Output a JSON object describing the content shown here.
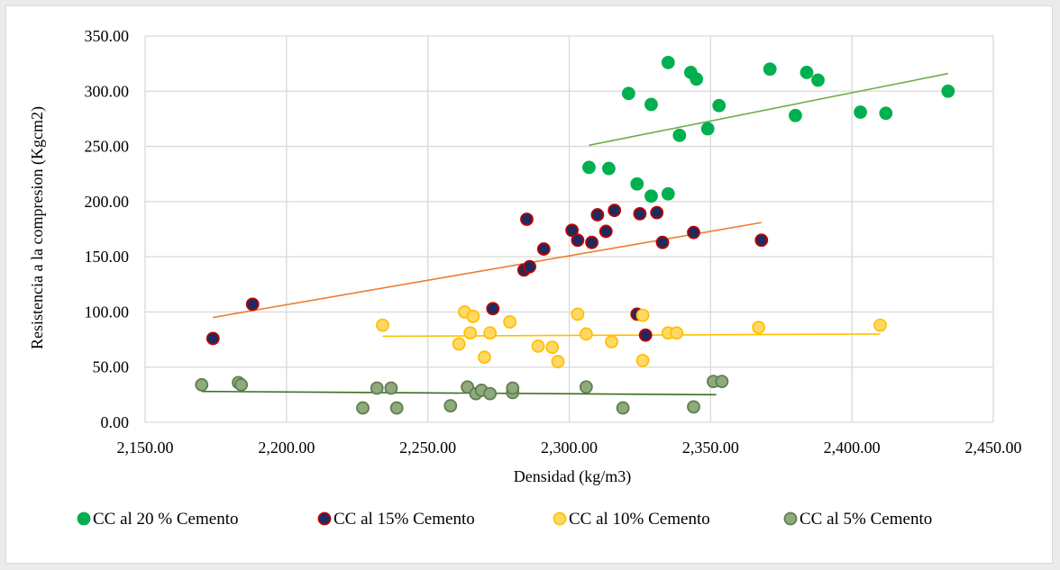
{
  "chart_data": {
    "type": "scatter",
    "title": "",
    "xlabel": "Densidad (kg/m3)",
    "ylabel": "Resistencia a la compresion (Kgcm2)",
    "xlim": [
      2150,
      2450
    ],
    "ylim": [
      0,
      350
    ],
    "xticks": [
      2150,
      2200,
      2250,
      2300,
      2350,
      2400,
      2450
    ],
    "xtick_labels": [
      "2,150.00",
      "2,200.00",
      "2,250.00",
      "2,300.00",
      "2,350.00",
      "2,400.00",
      "2,450.00"
    ],
    "yticks": [
      0,
      50,
      100,
      150,
      200,
      250,
      300,
      350
    ],
    "ytick_labels": [
      "0.00",
      "50.00",
      "100.00",
      "150.00",
      "200.00",
      "250.00",
      "300.00",
      "350.00"
    ],
    "grid": "both",
    "legend_position": "bottom",
    "series": [
      {
        "name": "CC  al 20 % Cemento",
        "marker_fill": "#00b050",
        "marker_stroke": "#00b050",
        "trend_color": "#70ad47",
        "trendline": {
          "x": [
            2307,
            2434
          ],
          "y": [
            251,
            316
          ]
        },
        "points": [
          [
            2335,
            326
          ],
          [
            2343,
            317
          ],
          [
            2345,
            311
          ],
          [
            2371,
            320
          ],
          [
            2384,
            317
          ],
          [
            2388,
            310
          ],
          [
            2321,
            298
          ],
          [
            2329,
            288
          ],
          [
            2353,
            287
          ],
          [
            2339,
            260
          ],
          [
            2349,
            266
          ],
          [
            2380,
            278
          ],
          [
            2403,
            281
          ],
          [
            2412,
            280
          ],
          [
            2434,
            300
          ],
          [
            2307,
            231
          ],
          [
            2314,
            230
          ],
          [
            2324,
            216
          ],
          [
            2329,
            205
          ],
          [
            2335,
            207
          ]
        ]
      },
      {
        "name": "CC  al 15% Cemento",
        "marker_fill": "#1f2a5e",
        "marker_stroke": "#c00000",
        "trend_color": "#ed7d31",
        "trendline": {
          "x": [
            2174,
            2368
          ],
          "y": [
            95,
            181
          ]
        },
        "points": [
          [
            2174,
            76
          ],
          [
            2188,
            107
          ],
          [
            2273,
            103
          ],
          [
            2285,
            184
          ],
          [
            2291,
            157
          ],
          [
            2284,
            138
          ],
          [
            2286,
            141
          ],
          [
            2301,
            174
          ],
          [
            2303,
            165
          ],
          [
            2308,
            163
          ],
          [
            2310,
            188
          ],
          [
            2313,
            173
          ],
          [
            2316,
            192
          ],
          [
            2325,
            189
          ],
          [
            2331,
            190
          ],
          [
            2333,
            163
          ],
          [
            2344,
            172
          ],
          [
            2368,
            165
          ],
          [
            2324,
            98
          ],
          [
            2327,
            79
          ]
        ]
      },
      {
        "name": "CC  al 10% Cemento",
        "marker_fill": "#ffd966",
        "marker_stroke": "#ffc000",
        "trend_color": "#ffc000",
        "trendline": {
          "x": [
            2234,
            2410
          ],
          "y": [
            78,
            80
          ]
        },
        "points": [
          [
            2234,
            88
          ],
          [
            2263,
            100
          ],
          [
            2266,
            96
          ],
          [
            2279,
            91
          ],
          [
            2261,
            71
          ],
          [
            2265,
            81
          ],
          [
            2270,
            59
          ],
          [
            2272,
            81
          ],
          [
            2289,
            69
          ],
          [
            2294,
            68
          ],
          [
            2296,
            55
          ],
          [
            2303,
            98
          ],
          [
            2306,
            80
          ],
          [
            2315,
            73
          ],
          [
            2326,
            97
          ],
          [
            2326,
            56
          ],
          [
            2335,
            81
          ],
          [
            2338,
            81
          ],
          [
            2367,
            86
          ],
          [
            2410,
            88
          ]
        ]
      },
      {
        "name": "CC  al 5% Cemento",
        "marker_fill": "#8faa7c",
        "marker_stroke": "#5f7f4f",
        "trend_color": "#3b6e22",
        "trendline": {
          "x": [
            2170,
            2352
          ],
          "y": [
            28,
            25
          ]
        },
        "points": [
          [
            2170,
            34
          ],
          [
            2183,
            36
          ],
          [
            2184,
            34
          ],
          [
            2232,
            31
          ],
          [
            2237,
            31
          ],
          [
            2227,
            13
          ],
          [
            2239,
            13
          ],
          [
            2258,
            15
          ],
          [
            2264,
            32
          ],
          [
            2267,
            26
          ],
          [
            2269,
            29
          ],
          [
            2272,
            26
          ],
          [
            2280,
            27
          ],
          [
            2280,
            31
          ],
          [
            2306,
            32
          ],
          [
            2319,
            13
          ],
          [
            2344,
            14
          ],
          [
            2351,
            37
          ],
          [
            2354,
            37
          ]
        ]
      }
    ]
  }
}
